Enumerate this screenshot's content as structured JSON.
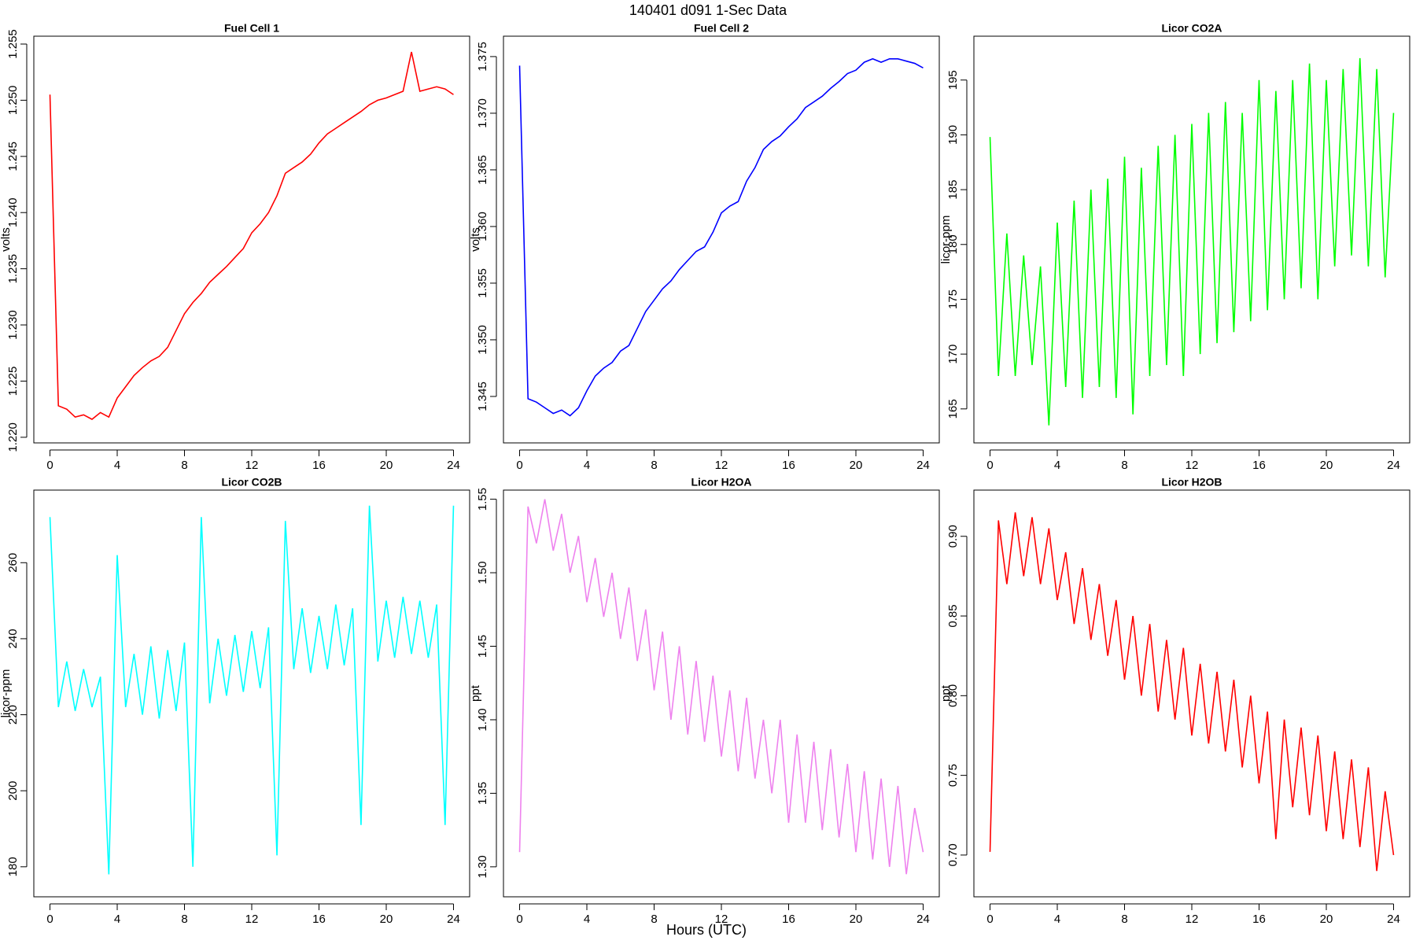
{
  "title": "140401   d091   1-Sec Data",
  "xlabel": "Hours (UTC)",
  "chart_data": [
    {
      "type": "line",
      "title": "Fuel Cell 1",
      "ylabel": "volts",
      "color": "#ff0000",
      "x": [
        0,
        0.5,
        1,
        1.5,
        2,
        2.5,
        3,
        3.5,
        4,
        4.5,
        5,
        5.5,
        6,
        6.5,
        7,
        7.5,
        8,
        8.5,
        9,
        9.5,
        10,
        10.5,
        11,
        11.5,
        12,
        12.5,
        13,
        13.5,
        14,
        14.5,
        15,
        15.5,
        16,
        16.5,
        17,
        17.5,
        18,
        18.5,
        19,
        19.5,
        20,
        20.5,
        21,
        21.5,
        22,
        22.5,
        23,
        23.5,
        24
      ],
      "values": [
        1.2505,
        1.2228,
        1.2225,
        1.2218,
        1.222,
        1.2216,
        1.2222,
        1.2218,
        1.2235,
        1.2245,
        1.2255,
        1.2262,
        1.2268,
        1.2272,
        1.228,
        1.2295,
        1.231,
        1.232,
        1.2328,
        1.2338,
        1.2345,
        1.2352,
        1.236,
        1.2368,
        1.2382,
        1.239,
        1.24,
        1.2415,
        1.2435,
        1.244,
        1.2445,
        1.2452,
        1.2462,
        1.247,
        1.2475,
        1.248,
        1.2485,
        1.249,
        1.2496,
        1.25,
        1.2502,
        1.2505,
        1.2508,
        1.2543,
        1.2508,
        1.251,
        1.2512,
        1.251,
        1.2505
      ],
      "xlim": [
        -0.96,
        24.96
      ],
      "xticks": [
        0,
        4,
        8,
        12,
        16,
        20,
        24
      ],
      "ylim": [
        1.2195,
        1.2557
      ],
      "yticks": [
        {
          "value": 1.22,
          "label": "1.220"
        },
        1.225,
        {
          "value": 1.23,
          "label": "1.230"
        },
        1.235,
        {
          "value": 1.24,
          "label": "1.240"
        },
        1.245,
        {
          "value": 1.25,
          "label": "1.250"
        },
        1.255
      ]
    },
    {
      "type": "line",
      "title": "Fuel Cell 2",
      "ylabel": "volts",
      "color": "#0000ff",
      "x": [
        0,
        0.5,
        1,
        1.5,
        2,
        2.5,
        3,
        3.5,
        4,
        4.5,
        5,
        5.5,
        6,
        6.5,
        7,
        7.5,
        8,
        8.5,
        9,
        9.5,
        10,
        10.5,
        11,
        11.5,
        12,
        12.5,
        13,
        13.5,
        14,
        14.5,
        15,
        15.5,
        16,
        16.5,
        17,
        17.5,
        18,
        18.5,
        19,
        19.5,
        20,
        20.5,
        21,
        21.5,
        22,
        22.5,
        23,
        23.5,
        24
      ],
      "values": [
        1.3742,
        1.3448,
        1.3445,
        1.344,
        1.3435,
        1.3438,
        1.3433,
        1.344,
        1.3455,
        1.3468,
        1.3475,
        1.348,
        1.349,
        1.3495,
        1.351,
        1.3525,
        1.3535,
        1.3545,
        1.3552,
        1.3562,
        1.357,
        1.3578,
        1.3582,
        1.3595,
        1.3612,
        1.3618,
        1.3622,
        1.364,
        1.3652,
        1.3668,
        1.3675,
        1.368,
        1.3688,
        1.3695,
        1.3705,
        1.371,
        1.3715,
        1.3722,
        1.3728,
        1.3735,
        1.3738,
        1.3745,
        1.3748,
        1.3745,
        1.3748,
        1.3748,
        1.3746,
        1.3744,
        1.374
      ],
      "xlim": [
        -0.96,
        24.96
      ],
      "xticks": [
        0,
        4,
        8,
        12,
        16,
        20,
        24
      ],
      "ylim": [
        1.3409,
        1.3768
      ],
      "yticks": [
        1.345,
        {
          "value": 1.35,
          "label": "1.350"
        },
        1.355,
        {
          "value": 1.36,
          "label": "1.360"
        },
        1.365,
        {
          "value": 1.37,
          "label": "1.370"
        },
        1.375
      ]
    },
    {
      "type": "line",
      "title": "Licor CO2A",
      "ylabel": "licor-ppm",
      "color": "#00ff00",
      "x": [
        0,
        0.5,
        1,
        1.5,
        2,
        2.5,
        3,
        3.5,
        4,
        4.5,
        5,
        5.5,
        6,
        6.5,
        7,
        7.5,
        8,
        8.5,
        9,
        9.5,
        10,
        10.5,
        11,
        11.5,
        12,
        12.5,
        13,
        13.5,
        14,
        14.5,
        15,
        15.5,
        16,
        16.5,
        17,
        17.5,
        18,
        18.5,
        19,
        19.5,
        20,
        20.5,
        21,
        21.5,
        22,
        22.5,
        23,
        23.5,
        24
      ],
      "values": [
        189.8,
        168,
        181,
        168,
        179,
        169,
        178,
        163.5,
        182,
        167,
        184,
        166,
        185,
        167,
        186,
        166,
        188,
        164.5,
        187,
        168,
        189,
        169,
        190,
        168,
        191,
        170,
        192,
        171,
        193,
        172,
        192,
        173,
        195,
        174,
        194,
        175,
        195,
        176,
        196.5,
        175,
        195,
        178,
        196,
        179,
        197,
        178,
        196,
        177,
        192
      ],
      "xlim": [
        -0.96,
        24.96
      ],
      "xticks": [
        0,
        4,
        8,
        12,
        16,
        20,
        24
      ],
      "ylim": [
        161.9,
        199
      ],
      "yticks": [
        165,
        170,
        175,
        180,
        185,
        190,
        195
      ]
    },
    {
      "type": "line",
      "title": "Licor CO2B",
      "ylabel": "licor-ppm",
      "color": "#00ffff",
      "x": [
        0,
        0.5,
        1,
        1.5,
        2,
        2.5,
        3,
        3.5,
        4,
        4.5,
        5,
        5.5,
        6,
        6.5,
        7,
        7.5,
        8,
        8.5,
        9,
        9.5,
        10,
        10.5,
        11,
        11.5,
        12,
        12.5,
        13,
        13.5,
        14,
        14.5,
        15,
        15.5,
        16,
        16.5,
        17,
        17.5,
        18,
        18.5,
        19,
        19.5,
        20,
        20.5,
        21,
        21.5,
        22,
        22.5,
        23,
        23.5,
        24
      ],
      "values": [
        272,
        222,
        234,
        221,
        232,
        222,
        230,
        178,
        262,
        222,
        236,
        220,
        238,
        219,
        237,
        221,
        239,
        180,
        272,
        223,
        240,
        225,
        241,
        226,
        242,
        227,
        243,
        183,
        271,
        232,
        248,
        231,
        246,
        232,
        249,
        233,
        248,
        191,
        275,
        234,
        250,
        235,
        251,
        236,
        250,
        235,
        249,
        191,
        275
      ],
      "xlim": [
        -0.96,
        24.96
      ],
      "xticks": [
        0,
        4,
        8,
        12,
        16,
        20,
        24
      ],
      "ylim": [
        172.1,
        279.1
      ],
      "yticks": [
        180,
        200,
        220,
        240,
        260
      ]
    },
    {
      "type": "line",
      "title": "Licor H2OA",
      "ylabel": "ppt",
      "color": "#ee82ee",
      "x": [
        0,
        0.5,
        1,
        1.5,
        2,
        2.5,
        3,
        3.5,
        4,
        4.5,
        5,
        5.5,
        6,
        6.5,
        7,
        7.5,
        8,
        8.5,
        9,
        9.5,
        10,
        10.5,
        11,
        11.5,
        12,
        12.5,
        13,
        13.5,
        14,
        14.5,
        15,
        15.5,
        16,
        16.5,
        17,
        17.5,
        18,
        18.5,
        19,
        19.5,
        20,
        20.5,
        21,
        21.5,
        22,
        22.5,
        23,
        23.5,
        24
      ],
      "values": [
        1.31,
        1.545,
        1.52,
        1.55,
        1.515,
        1.54,
        1.5,
        1.525,
        1.48,
        1.51,
        1.47,
        1.5,
        1.455,
        1.49,
        1.44,
        1.475,
        1.42,
        1.46,
        1.4,
        1.45,
        1.39,
        1.44,
        1.385,
        1.43,
        1.375,
        1.42,
        1.365,
        1.415,
        1.36,
        1.4,
        1.35,
        1.4,
        1.33,
        1.39,
        1.33,
        1.385,
        1.325,
        1.38,
        1.32,
        1.37,
        1.31,
        1.365,
        1.305,
        1.36,
        1.3,
        1.355,
        1.295,
        1.34,
        1.31
      ],
      "xlim": [
        -0.96,
        24.96
      ],
      "xticks": [
        0,
        4,
        8,
        12,
        16,
        20,
        24
      ],
      "ylim": [
        1.2796,
        1.5562
      ],
      "yticks": [
        {
          "value": 1.3,
          "label": "1.30"
        },
        1.35,
        {
          "value": 1.4,
          "label": "1.40"
        },
        1.45,
        {
          "value": 1.5,
          "label": "1.50"
        },
        1.55
      ]
    },
    {
      "type": "line",
      "title": "Licor H2OB",
      "ylabel": "ppt",
      "color": "#ff0000",
      "x": [
        0,
        0.5,
        1,
        1.5,
        2,
        2.5,
        3,
        3.5,
        4,
        4.5,
        5,
        5.5,
        6,
        6.5,
        7,
        7.5,
        8,
        8.5,
        9,
        9.5,
        10,
        10.5,
        11,
        11.5,
        12,
        12.5,
        13,
        13.5,
        14,
        14.5,
        15,
        15.5,
        16,
        16.5,
        17,
        17.5,
        18,
        18.5,
        19,
        19.5,
        20,
        20.5,
        21,
        21.5,
        22,
        22.5,
        23,
        23.5,
        24
      ],
      "values": [
        0.702,
        0.91,
        0.87,
        0.915,
        0.875,
        0.912,
        0.87,
        0.905,
        0.86,
        0.89,
        0.845,
        0.88,
        0.835,
        0.87,
        0.825,
        0.86,
        0.81,
        0.85,
        0.8,
        0.845,
        0.79,
        0.835,
        0.785,
        0.83,
        0.775,
        0.82,
        0.77,
        0.815,
        0.765,
        0.81,
        0.755,
        0.8,
        0.745,
        0.79,
        0.71,
        0.785,
        0.73,
        0.78,
        0.725,
        0.775,
        0.715,
        0.765,
        0.71,
        0.76,
        0.705,
        0.755,
        0.69,
        0.74,
        0.7
      ],
      "xlim": [
        -0.96,
        24.96
      ],
      "xticks": [
        0,
        4,
        8,
        12,
        16,
        20,
        24
      ],
      "ylim": [
        0.6738,
        0.929
      ],
      "yticks": [
        {
          "value": 0.7,
          "label": "0.70"
        },
        0.75,
        {
          "value": 0.8,
          "label": "0.80"
        },
        0.85,
        {
          "value": 0.9,
          "label": "0.90"
        }
      ]
    }
  ]
}
